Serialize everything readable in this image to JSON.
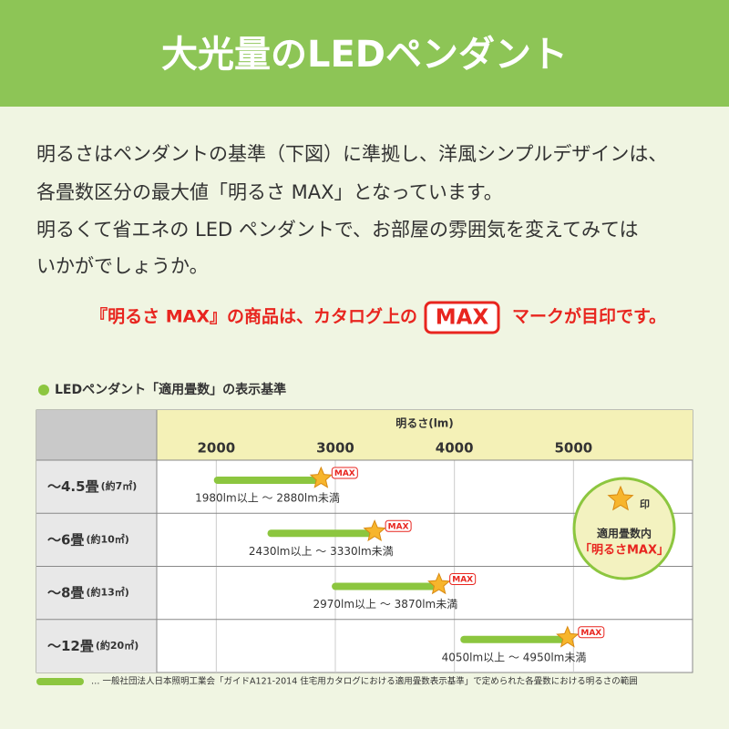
{
  "header": {
    "title": "大光量のLEDペンダント"
  },
  "intro": {
    "lines": [
      "明るさはペンダントの基準（下図）に準拠し、洋風シンプルデザインは、",
      "各畳数区分の最大値「明るさ MAX」となっています。",
      "明るくて省エネの LED ペンダントで、お部屋の雰囲気を変えてみては",
      "いかがでしょうか。"
    ],
    "notice": {
      "before": "『明るさ MAX』の商品は、カタログ上の",
      "badge": "MAX",
      "after": "マークが目印です。"
    }
  },
  "chart_data": {
    "type": "range-bar",
    "title": "LEDペンダント「適用畳数」の表示基準",
    "x_label": "明るさ(lm)",
    "categories": [
      "～4.5畳",
      "～6畳",
      "～8畳",
      "～12畳"
    ],
    "category_notes": [
      "(約7㎡)",
      "(約10㎡)",
      "(約13㎡)",
      "(約20㎡)"
    ],
    "series": [
      {
        "name": "… 一般社団法人日本照明工業会「ガイドA121-2014 住宅用カタログにおける適用畳数表示基準」で定められた各畳数における明るさの範囲",
        "color": "#8cc63f",
        "low": [
          1980,
          2430,
          2970,
          4050
        ],
        "high": [
          2880,
          3330,
          3870,
          4950
        ],
        "range_labels": [
          "1980lm以上 ～ 2880lm未満",
          "2430lm以上 ～ 3330lm未満",
          "2970lm以上 ～ 3870lm未満",
          "4050lm以上 ～ 4950lm未満"
        ]
      }
    ],
    "marker_label": "MAX",
    "xlim": [
      1500,
      6000
    ],
    "xticks": [
      2000,
      3000,
      4000,
      5000
    ],
    "grid": true
  },
  "badge": {
    "mark": "印",
    "lines": [
      "適用畳数内",
      "「明るさMAX」"
    ]
  }
}
